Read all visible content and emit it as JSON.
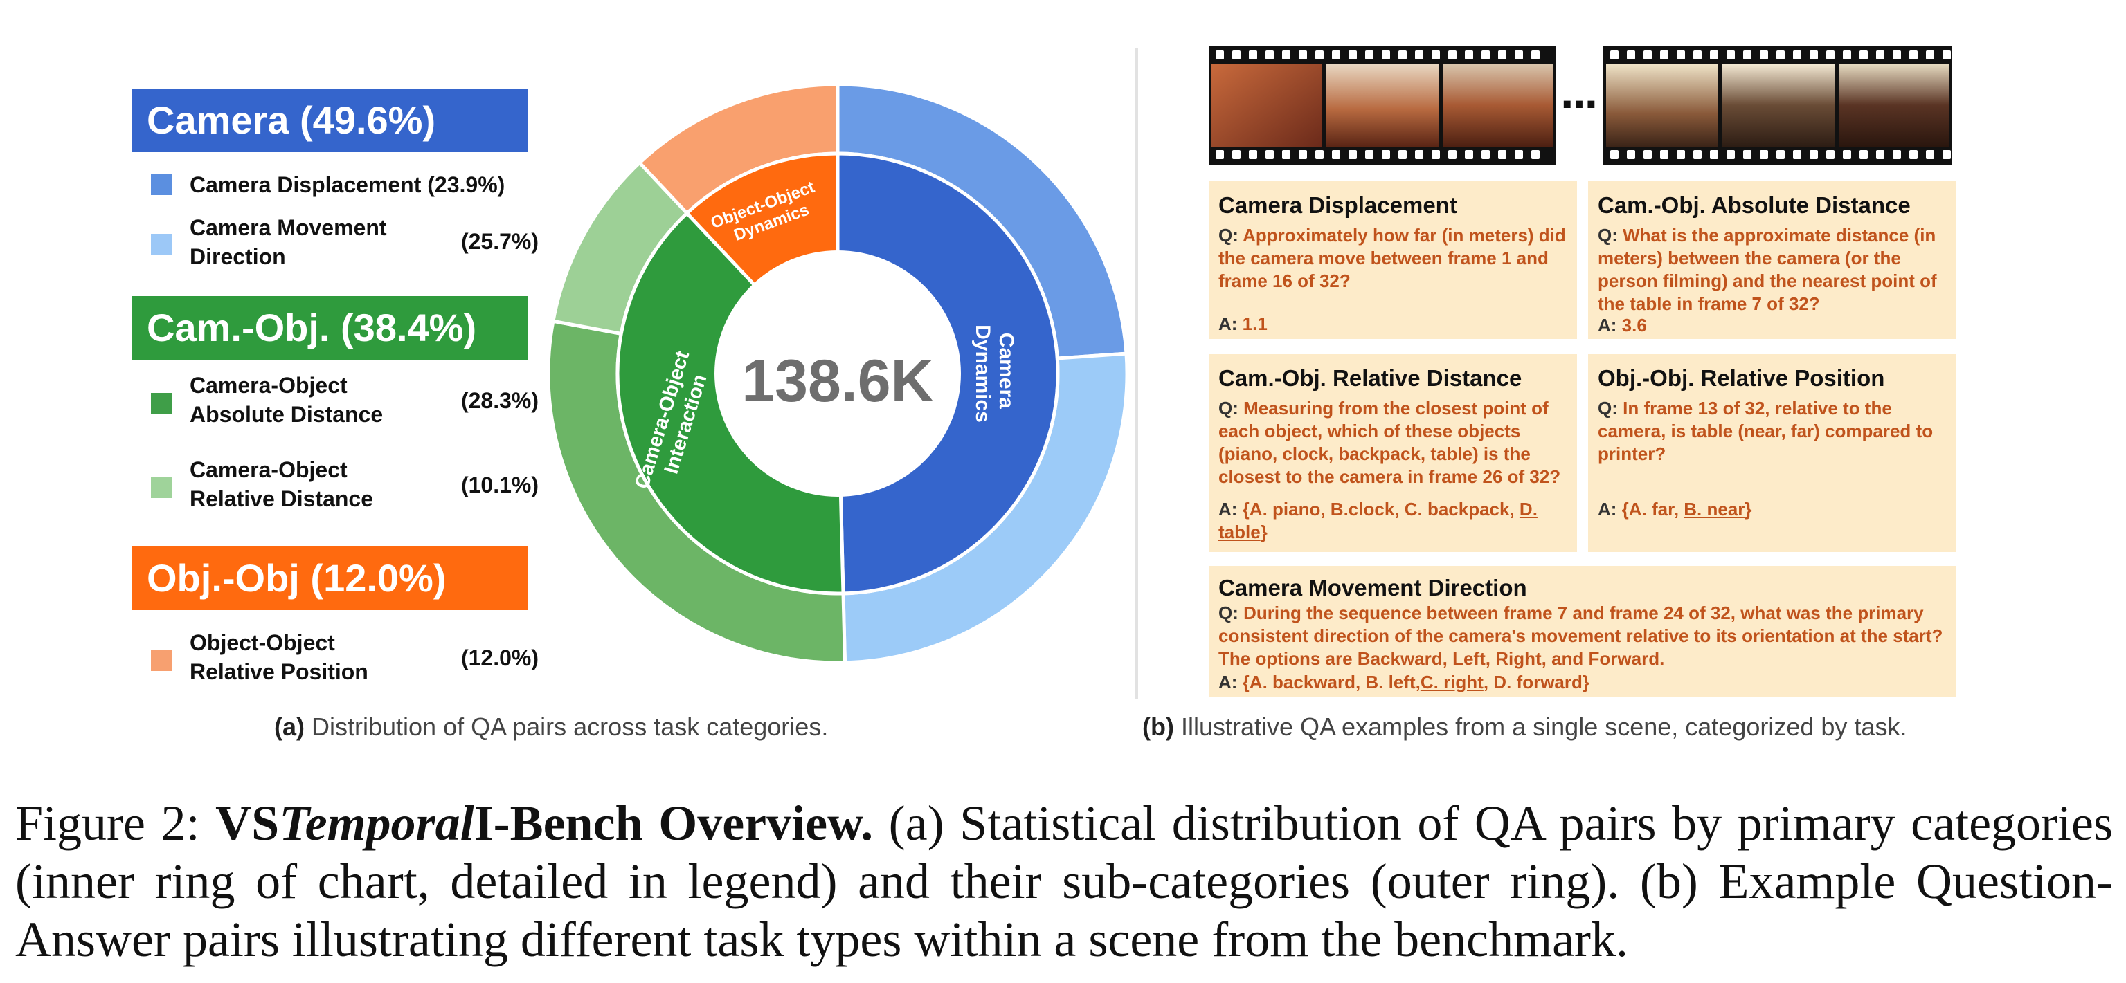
{
  "panel_a": {
    "center_label": "138.6K",
    "categories": [
      {
        "title": "Camera (49.6%)",
        "color": "#3565cc",
        "items": [
          {
            "label": "Camera Displacement (23.9%)",
            "pct": "",
            "color": "#5b8fe0"
          },
          {
            "label": "Camera Movement Direction",
            "pct": "(25.7%)",
            "color": "#9cc8f7"
          }
        ]
      },
      {
        "title": "Cam.-Obj. (38.4%)",
        "color": "#2f9b3d",
        "items": [
          {
            "label": "Camera-Object Absolute Distance",
            "pct": "(28.3%)",
            "color": "#3f9e48"
          },
          {
            "label": "Camera-Object Relative Distance",
            "pct": "(10.1%)",
            "color": "#9fd39a"
          }
        ]
      },
      {
        "title": "Obj.-Obj (12.0%)",
        "color": "#ff6a0f",
        "items": [
          {
            "label": "Object-Object Relative Position",
            "pct": "(12.0%)",
            "color": "#f7a070"
          }
        ]
      }
    ],
    "inner_ring_labels": {
      "camera": "Camera Dynamics",
      "cam_obj": "Camera-Object Interaction",
      "obj_obj": "Object-Object Dynamics"
    },
    "caption_tag": "(a)",
    "caption_text": " Distribution of QA pairs across task categories."
  },
  "chart_data": {
    "type": "pie",
    "center_label": "138.6K",
    "inner": [
      {
        "name": "Camera Dynamics",
        "value": 49.6,
        "color": "#3565cc"
      },
      {
        "name": "Camera-Object Interaction",
        "value": 38.4,
        "color": "#2f9b3d"
      },
      {
        "name": "Object-Object Dynamics",
        "value": 12.0,
        "color": "#ff6a0f"
      }
    ],
    "outer": [
      {
        "name": "Camera Displacement",
        "value": 23.9,
        "color": "#6a9be6"
      },
      {
        "name": "Camera Movement Direction",
        "value": 25.7,
        "color": "#9ccbf8"
      },
      {
        "name": "Camera-Object Absolute Distance",
        "value": 28.3,
        "color": "#6cb566"
      },
      {
        "name": "Camera-Object Relative Distance",
        "value": 10.1,
        "color": "#9dd096"
      },
      {
        "name": "Object-Object Relative Position",
        "value": 12.0,
        "color": "#f9a06e"
      }
    ]
  },
  "panel_b": {
    "ellipsis": "···",
    "cards": [
      {
        "title": "Camera Displacement",
        "q_prefix": "Q: ",
        "q": "Approximately how far (in meters) did the camera move between frame 1 and frame 16 of 32?",
        "a_prefix": "A: ",
        "a": "1.1"
      },
      {
        "title": "Cam.-Obj. Absolute Distance",
        "q_prefix": "Q: ",
        "q": "What is the approximate distance (in meters) between the camera (or the person filming) and the nearest point of the table in frame 7 of 32?",
        "a_prefix": "A: ",
        "a": "3.6"
      },
      {
        "title": "Cam.-Obj. Relative Distance",
        "q_prefix": "Q: ",
        "q": "Measuring from the closest point of each object, which of these objects (piano, clock, backpack, table) is the closest to the camera in frame 26 of 32?",
        "a_prefix": "A: ",
        "a": "{A. piano, B.clock, C. backpack, ",
        "a_ul": "D. table",
        "a_end": "}"
      },
      {
        "title": "Obj.-Obj. Relative Position",
        "q_prefix": "Q: ",
        "q": "In frame 13 of 32, relative to the camera, is table (near, far) compared to printer?",
        "a_prefix": "A: ",
        "a": "{A. far, ",
        "a_ul": "B. near",
        "a_end": "}"
      },
      {
        "title": "Camera Movement Direction",
        "q_prefix": "Q: ",
        "q": "During the sequence between frame 7 and frame 24 of 32, what was the primary consistent direction of the camera's movement relative to its orientation at the start? The options are Backward, Left, Right, and Forward.",
        "a_prefix": "A: ",
        "a": "{A. backward, B. left,",
        "a_ul": "C. right",
        "a_end": ", D. forward}"
      }
    ],
    "caption_tag": "(b)",
    "caption_text": " Illustrative QA examples from a single scene, categorized by task."
  },
  "figure_caption": {
    "label": "Figure 2:  ",
    "bold_a": "VS",
    "bold_italic": "Temporal",
    "bold_b": "I-Bench Overview.",
    "body": "  (a) Statistical distribution of QA pairs by primary categories (inner ring of chart, detailed in legend) and their sub-categories (outer ring). (b) Example Question-Answer pairs illustrating different task types within a scene from the benchmark."
  }
}
